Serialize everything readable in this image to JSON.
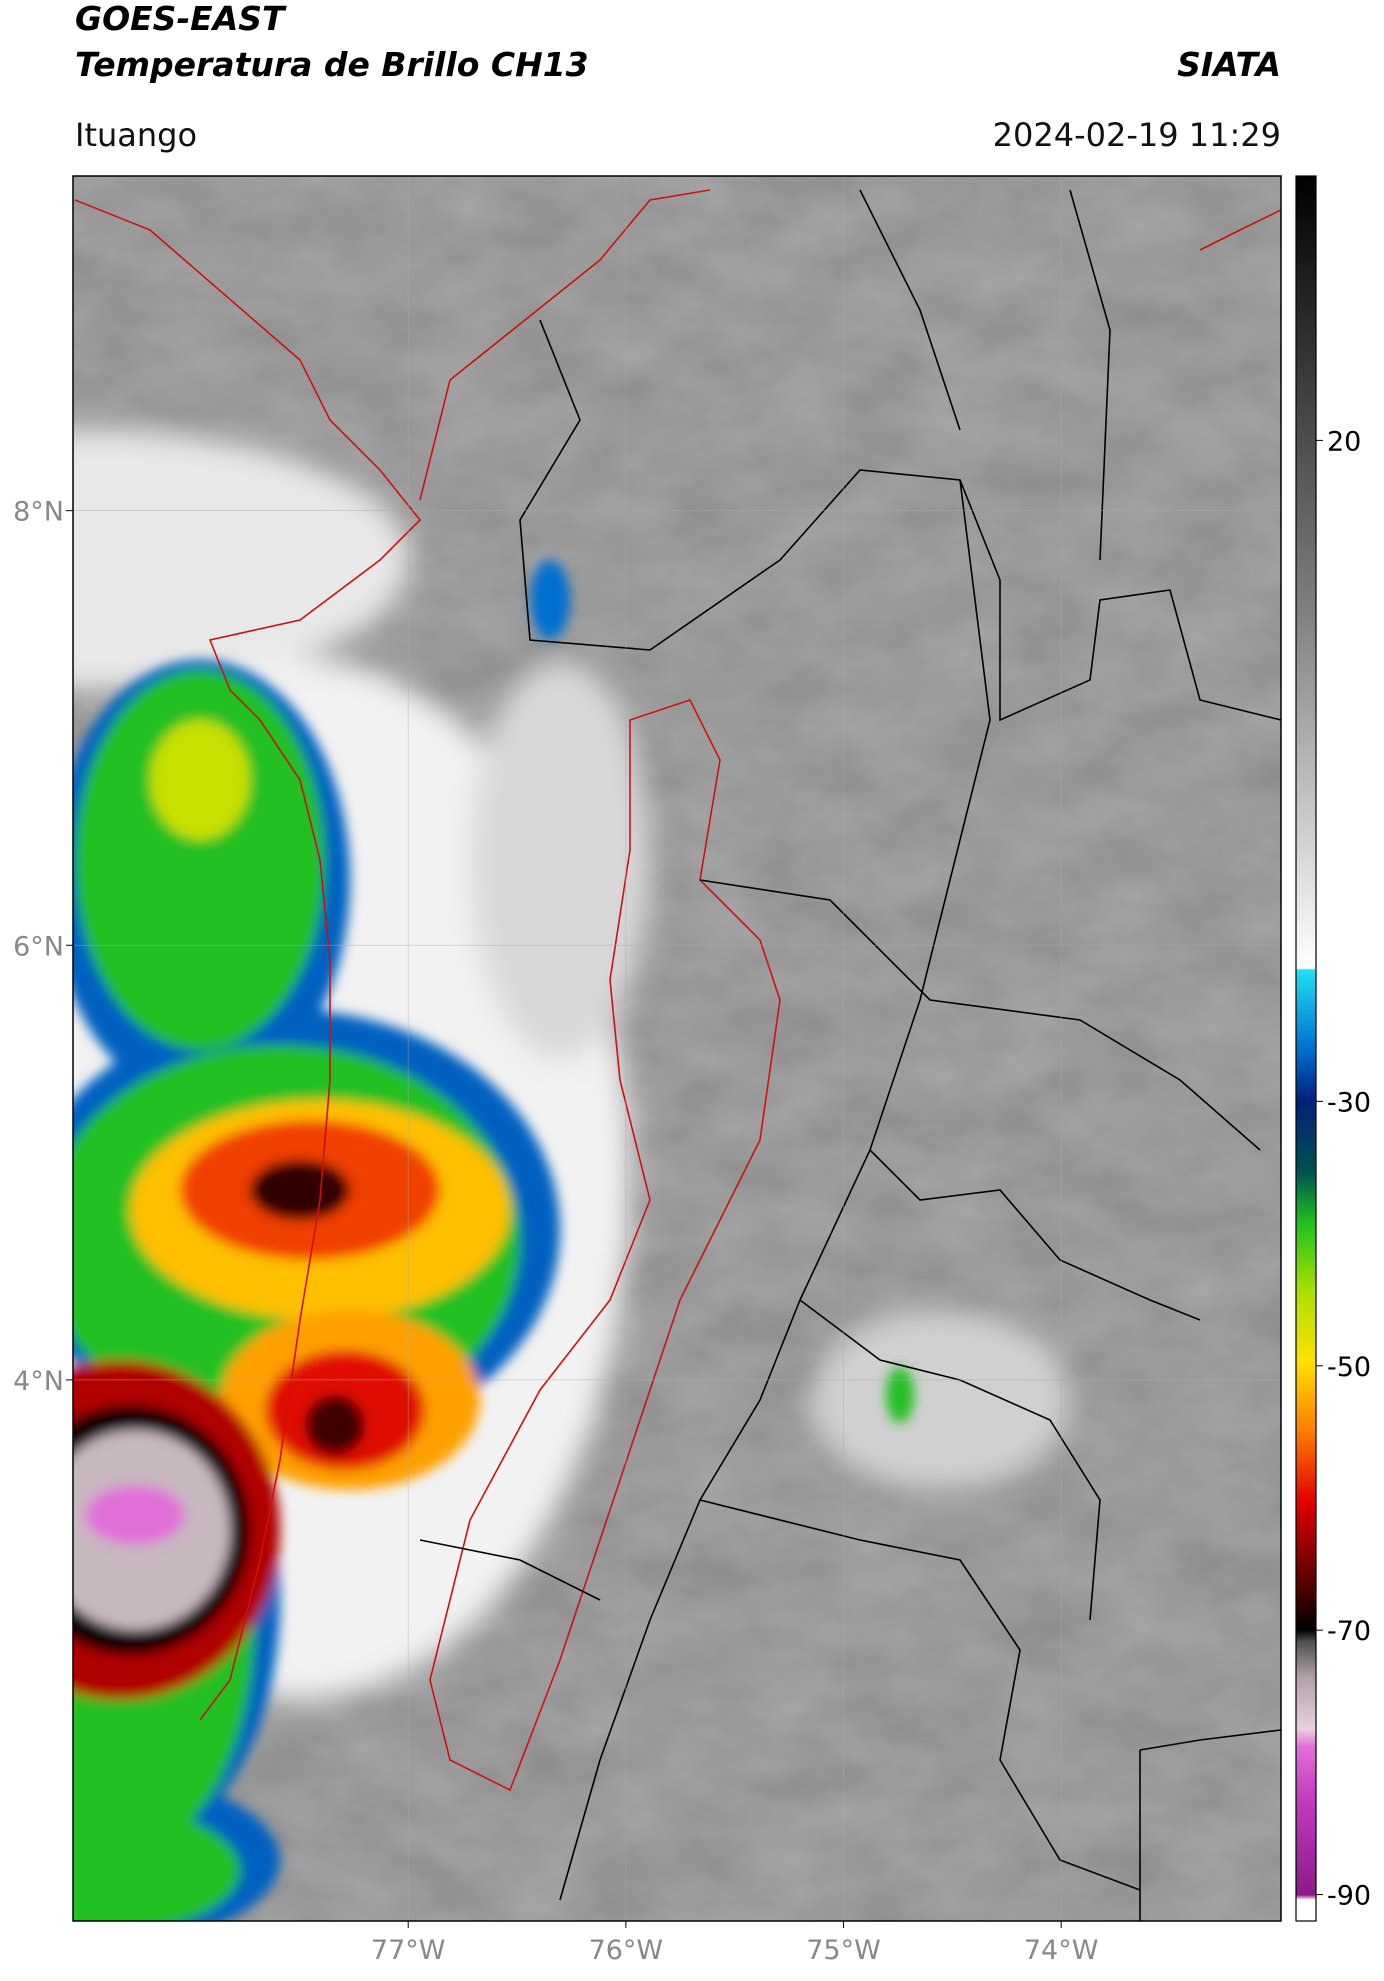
{
  "header": {
    "title": "GOES-EAST",
    "subtitle": "Temperatura de Brillo CH13",
    "source": "SIATA",
    "location": "Ituango",
    "datetime": "2024-02-19 11:29"
  },
  "map": {
    "xlim": [
      -78.54,
      -72.99
    ],
    "ylim": [
      1.51,
      9.54
    ],
    "xticks": [
      {
        "value": -77,
        "label": "77°W"
      },
      {
        "value": -76,
        "label": "76°W"
      },
      {
        "value": -75,
        "label": "75°W"
      },
      {
        "value": -74,
        "label": "74°W"
      }
    ],
    "yticks": [
      {
        "value": 8,
        "label": "8°N"
      },
      {
        "value": 6,
        "label": "6°N"
      },
      {
        "value": 4,
        "label": "4°N"
      }
    ],
    "grid": true
  },
  "colorbar": {
    "lim": [
      -92,
      40
    ],
    "ticks": [
      20,
      -30,
      -50,
      -70,
      -90
    ]
  }
}
